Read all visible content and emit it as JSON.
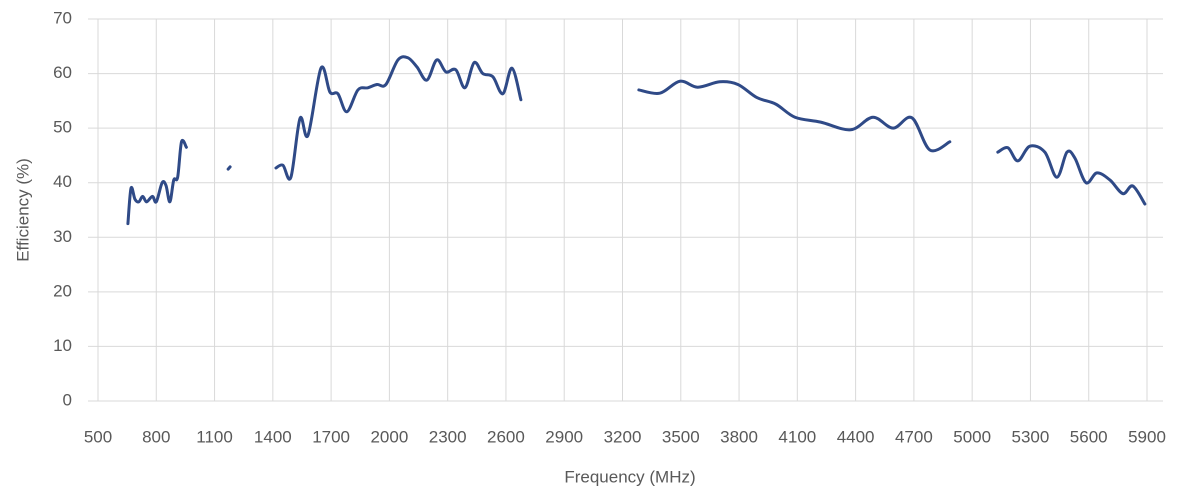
{
  "chart_data": {
    "type": "line",
    "x_label": "Frequency (MHz)",
    "y_label": "Efficiency (%)",
    "xlim": [
      500,
      5900
    ],
    "xticks": [
      500,
      800,
      1100,
      1400,
      1700,
      2000,
      2300,
      2600,
      2900,
      3200,
      3500,
      3800,
      4100,
      4400,
      4700,
      5000,
      5300,
      5600,
      5900
    ],
    "ylim": [
      0,
      70
    ],
    "yticks": [
      0,
      10,
      20,
      30,
      40,
      50,
      60,
      70
    ],
    "grid": true,
    "x": [
      654,
      670,
      690,
      710,
      730,
      750,
      780,
      800,
      830,
      850,
      870,
      890,
      910,
      930,
      955,
      1050,
      1170,
      1180,
      1300,
      1416,
      1452,
      1493,
      1540,
      1581,
      1648,
      1694,
      1735,
      1781,
      1838,
      1889,
      1936,
      1982,
      2044,
      2095,
      2142,
      2193,
      2244,
      2291,
      2342,
      2389,
      2436,
      2481,
      2533,
      2584,
      2631,
      2677,
      3000,
      3284,
      3392,
      3495,
      3587,
      3701,
      3794,
      3892,
      3989,
      4088,
      4220,
      4375,
      4489,
      4593,
      4690,
      4782,
      4885,
      5000,
      5132,
      5184,
      5235,
      5297,
      5374,
      5436,
      5488,
      5529,
      5586,
      5642,
      5709,
      5776,
      5827,
      5889
    ],
    "series": [
      {
        "name": "Efficiency",
        "color": "#2f4a87",
        "values": [
          32.5,
          39,
          37,
          36.5,
          37.5,
          36.5,
          37.5,
          36.5,
          40,
          39.5,
          36.5,
          40.5,
          41,
          47.5,
          46.5,
          null,
          42.5,
          42.9,
          null,
          42.7,
          43.2,
          41,
          51.8,
          48.7,
          61,
          56.6,
          56.3,
          53,
          57,
          57.4,
          58,
          58,
          62.5,
          62.9,
          61.2,
          58.8,
          62.5,
          60.3,
          60.7,
          57.4,
          62,
          60,
          59.4,
          56.3,
          61,
          55.2,
          null,
          57,
          56.4,
          58.6,
          57.5,
          58.5,
          58,
          55.6,
          54.4,
          52,
          51.1,
          49.7,
          52,
          50,
          51.9,
          46,
          47.5,
          null,
          45.6,
          46.4,
          44,
          46.7,
          45.6,
          41,
          45.6,
          44.5,
          40,
          41.8,
          40.5,
          38,
          39.4,
          36.1
        ]
      }
    ]
  }
}
